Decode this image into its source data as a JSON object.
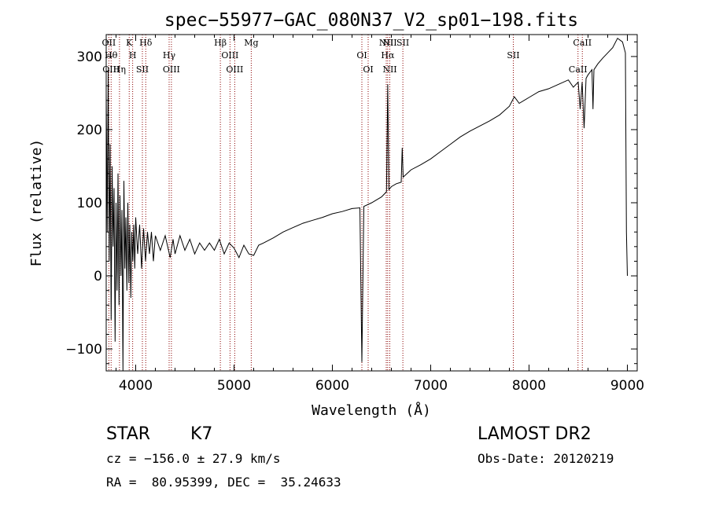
{
  "chart_data": {
    "type": "line",
    "title": "spec−55977−GAC_080N37_V2_sp01−198.fits",
    "xlabel": "Wavelength (Å)",
    "ylabel": "Flux (relative)",
    "xlim": [
      3700,
      9100
    ],
    "ylim": [
      -130,
      330
    ],
    "xticks": [
      "4000",
      "5000",
      "6000",
      "7000",
      "8000",
      "9000"
    ],
    "yticks": [
      "−100",
      "0",
      "100",
      "200",
      "300"
    ],
    "series": [
      {
        "points": [
          [
            3700,
            250
          ],
          [
            3710,
            60
          ],
          [
            3720,
            280
          ],
          [
            3730,
            20
          ],
          [
            3740,
            180
          ],
          [
            3750,
            -60
          ],
          [
            3760,
            150
          ],
          [
            3770,
            40
          ],
          [
            3780,
            120
          ],
          [
            3790,
            -90
          ],
          [
            3800,
            100
          ],
          [
            3810,
            -20
          ],
          [
            3820,
            140
          ],
          [
            3830,
            -40
          ],
          [
            3840,
            110
          ],
          [
            3850,
            0
          ],
          [
            3860,
            90
          ],
          [
            3870,
            -130
          ],
          [
            3880,
            130
          ],
          [
            3890,
            10
          ],
          [
            3900,
            80
          ],
          [
            3910,
            -20
          ],
          [
            3920,
            100
          ],
          [
            3930,
            -10
          ],
          [
            3940,
            70
          ],
          [
            3950,
            -30
          ],
          [
            3960,
            60
          ],
          [
            3970,
            20
          ],
          [
            3980,
            70
          ],
          [
            3990,
            10
          ],
          [
            4000,
            80
          ],
          [
            4020,
            30
          ],
          [
            4040,
            70
          ],
          [
            4060,
            10
          ],
          [
            4080,
            65
          ],
          [
            4100,
            20
          ],
          [
            4120,
            60
          ],
          [
            4140,
            30
          ],
          [
            4160,
            60
          ],
          [
            4180,
            20
          ],
          [
            4200,
            55
          ],
          [
            4250,
            35
          ],
          [
            4300,
            55
          ],
          [
            4350,
            25
          ],
          [
            4380,
            50
          ],
          [
            4400,
            30
          ],
          [
            4450,
            55
          ],
          [
            4500,
            35
          ],
          [
            4550,
            50
          ],
          [
            4600,
            30
          ],
          [
            4650,
            45
          ],
          [
            4700,
            35
          ],
          [
            4750,
            45
          ],
          [
            4800,
            35
          ],
          [
            4850,
            50
          ],
          [
            4900,
            30
          ],
          [
            4950,
            45
          ],
          [
            5000,
            38
          ],
          [
            5050,
            25
          ],
          [
            5100,
            42
          ],
          [
            5150,
            30
          ],
          [
            5200,
            28
          ],
          [
            5250,
            42
          ],
          [
            5300,
            45
          ],
          [
            5400,
            52
          ],
          [
            5500,
            60
          ],
          [
            5600,
            66
          ],
          [
            5700,
            72
          ],
          [
            5800,
            76
          ],
          [
            5900,
            80
          ],
          [
            6000,
            85
          ],
          [
            6100,
            88
          ],
          [
            6200,
            92
          ],
          [
            6280,
            93
          ],
          [
            6300,
            -118
          ],
          [
            6320,
            95
          ],
          [
            6400,
            100
          ],
          [
            6500,
            108
          ],
          [
            6550,
            115
          ],
          [
            6563,
            262
          ],
          [
            6575,
            118
          ],
          [
            6600,
            122
          ],
          [
            6650,
            126
          ],
          [
            6700,
            128
          ],
          [
            6710,
            175
          ],
          [
            6720,
            135
          ],
          [
            6800,
            145
          ],
          [
            6900,
            152
          ],
          [
            7000,
            160
          ],
          [
            7100,
            170
          ],
          [
            7200,
            180
          ],
          [
            7300,
            190
          ],
          [
            7400,
            198
          ],
          [
            7500,
            205
          ],
          [
            7600,
            212
          ],
          [
            7700,
            220
          ],
          [
            7800,
            232
          ],
          [
            7850,
            245
          ],
          [
            7900,
            236
          ],
          [
            8000,
            244
          ],
          [
            8100,
            252
          ],
          [
            8200,
            256
          ],
          [
            8300,
            262
          ],
          [
            8400,
            268
          ],
          [
            8450,
            258
          ],
          [
            8500,
            265
          ],
          [
            8520,
            228
          ],
          [
            8540,
            265
          ],
          [
            8560,
            202
          ],
          [
            8580,
            270
          ],
          [
            8600,
            275
          ],
          [
            8640,
            282
          ],
          [
            8650,
            228
          ],
          [
            8660,
            282
          ],
          [
            8700,
            290
          ],
          [
            8750,
            298
          ],
          [
            8800,
            305
          ],
          [
            8850,
            312
          ],
          [
            8900,
            325
          ],
          [
            8950,
            320
          ],
          [
            8980,
            305
          ],
          [
            8990,
            60
          ],
          [
            9000,
            0
          ]
        ]
      }
    ],
    "lines": [
      {
        "wave": 3727,
        "labels": [
          "OII"
        ]
      },
      {
        "wave": 3750,
        "labels": [
          "Hθ",
          "OIII"
        ]
      },
      {
        "wave": 3835,
        "labels": [
          "Hη"
        ]
      },
      {
        "wave": 3934,
        "labels": [
          "K"
        ]
      },
      {
        "wave": 3969,
        "labels": [
          "H"
        ]
      },
      {
        "wave": 4068,
        "labels": [
          "SII"
        ]
      },
      {
        "wave": 4102,
        "labels": [
          "Hδ"
        ]
      },
      {
        "wave": 4340,
        "labels": [
          "Hγ"
        ]
      },
      {
        "wave": 4363,
        "labels": [
          "OIII"
        ]
      },
      {
        "wave": 4861,
        "labels": [
          "Hβ"
        ]
      },
      {
        "wave": 4959,
        "labels": [
          "OIII"
        ]
      },
      {
        "wave": 5007,
        "labels": [
          "OIII"
        ]
      },
      {
        "wave": 5175,
        "labels": [
          "Mg"
        ]
      },
      {
        "wave": 6300,
        "labels": [
          "OI"
        ]
      },
      {
        "wave": 6364,
        "labels": [
          "OI"
        ]
      },
      {
        "wave": 6548,
        "labels": [
          "NII"
        ]
      },
      {
        "wave": 6563,
        "labels": [
          "Hα"
        ]
      },
      {
        "wave": 6584,
        "labels": [
          "NII",
          "NII"
        ]
      },
      {
        "wave": 6717,
        "labels": [
          "SII"
        ]
      },
      {
        "wave": 7840,
        "labels": [
          "SII"
        ]
      },
      {
        "wave": 8498,
        "labels": [
          "CaII"
        ]
      },
      {
        "wave": 8542,
        "labels": [
          "CaII"
        ]
      }
    ]
  },
  "info": {
    "object_class": "STAR",
    "subclass": "K7",
    "survey": "LAMOST DR2",
    "redshift": "cz = −156.0 ± 27.9 km/s",
    "obs_date": "Obs-Date: 20120219",
    "coords": "RA =  80.95399, DEC =  35.24633"
  },
  "colors": {
    "spectrum": "#000000",
    "line_markers": "#8b0000",
    "axes": "#000000"
  }
}
